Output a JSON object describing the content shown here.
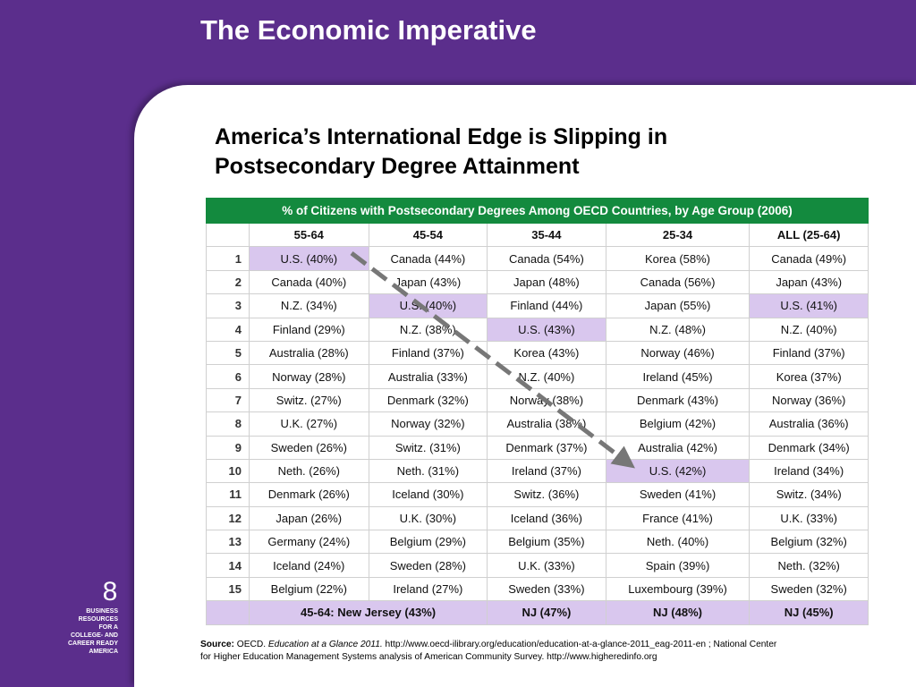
{
  "slide": {
    "title": "The Economic Imperative",
    "subtitle_line1": "America’s International Edge is Slipping in",
    "subtitle_line2": "Postsecondary Degree Attainment",
    "page_number": "8",
    "brand_lines": [
      "BUSINESS",
      "RESOURCES",
      "FOR A",
      "COLLEGE- AND",
      "CAREER READY",
      "AMERICA"
    ]
  },
  "table": {
    "caption": "% of Citizens with Postsecondary Degrees Among OECD Countries, by Age Group (2006)",
    "headers": [
      "",
      "55-64",
      "45-54",
      "35-44",
      "25-34",
      "ALL (25-64)"
    ],
    "rows": [
      {
        "rank": "1",
        "cells": [
          "U.S. (40%)",
          "Canada (44%)",
          "Canada (54%)",
          "Korea (58%)",
          "Canada (49%)"
        ],
        "highlight": [
          true,
          false,
          false,
          false,
          false
        ]
      },
      {
        "rank": "2",
        "cells": [
          "Canada (40%)",
          "Japan (43%)",
          "Japan (48%)",
          "Canada (56%)",
          "Japan (43%)"
        ],
        "highlight": [
          false,
          false,
          false,
          false,
          false
        ]
      },
      {
        "rank": "3",
        "cells": [
          "N.Z. (34%)",
          "U.S. (40%)",
          "Finland (44%)",
          "Japan (55%)",
          "U.S. (41%)"
        ],
        "highlight": [
          false,
          true,
          false,
          false,
          true
        ]
      },
      {
        "rank": "4",
        "cells": [
          "Finland (29%)",
          "N.Z. (38%)",
          "U.S. (43%)",
          "N.Z. (48%)",
          "N.Z. (40%)"
        ],
        "highlight": [
          false,
          false,
          true,
          false,
          false
        ]
      },
      {
        "rank": "5",
        "cells": [
          "Australia (28%)",
          "Finland (37%)",
          "Korea (43%)",
          "Norway (46%)",
          "Finland (37%)"
        ],
        "highlight": [
          false,
          false,
          false,
          false,
          false
        ]
      },
      {
        "rank": "6",
        "cells": [
          "Norway (28%)",
          "Australia (33%)",
          "N.Z. (40%)",
          "Ireland (45%)",
          "Korea (37%)"
        ],
        "highlight": [
          false,
          false,
          false,
          false,
          false
        ]
      },
      {
        "rank": "7",
        "cells": [
          "Switz. (27%)",
          "Denmark (32%)",
          "Norway (38%)",
          "Denmark (43%)",
          "Norway (36%)"
        ],
        "highlight": [
          false,
          false,
          false,
          false,
          false
        ]
      },
      {
        "rank": "8",
        "cells": [
          "U.K. (27%)",
          "Norway (32%)",
          "Australia (38%)",
          "Belgium (42%)",
          "Australia (36%)"
        ],
        "highlight": [
          false,
          false,
          false,
          false,
          false
        ]
      },
      {
        "rank": "9",
        "cells": [
          "Sweden (26%)",
          "Switz. (31%)",
          "Denmark (37%)",
          "Australia (42%)",
          "Denmark (34%)"
        ],
        "highlight": [
          false,
          false,
          false,
          false,
          false
        ]
      },
      {
        "rank": "10",
        "cells": [
          "Neth. (26%)",
          "Neth. (31%)",
          "Ireland (37%)",
          "U.S. (42%)",
          "Ireland (34%)"
        ],
        "highlight": [
          false,
          false,
          false,
          true,
          false
        ]
      },
      {
        "rank": "11",
        "cells": [
          "Denmark (26%)",
          "Iceland (30%)",
          "Switz. (36%)",
          "Sweden (41%)",
          "Switz. (34%)"
        ],
        "highlight": [
          false,
          false,
          false,
          false,
          false
        ]
      },
      {
        "rank": "12",
        "cells": [
          "Japan (26%)",
          "U.K. (30%)",
          "Iceland (36%)",
          "France (41%)",
          "U.K. (33%)"
        ],
        "highlight": [
          false,
          false,
          false,
          false,
          false
        ]
      },
      {
        "rank": "13",
        "cells": [
          "Germany (24%)",
          "Belgium (29%)",
          "Belgium (35%)",
          "Neth. (40%)",
          "Belgium (32%)"
        ],
        "highlight": [
          false,
          false,
          false,
          false,
          false
        ]
      },
      {
        "rank": "14",
        "cells": [
          "Iceland (24%)",
          "Sweden (28%)",
          "U.K. (33%)",
          "Spain (39%)",
          "Neth. (32%)"
        ],
        "highlight": [
          false,
          false,
          false,
          false,
          false
        ]
      },
      {
        "rank": "15",
        "cells": [
          "Belgium (22%)",
          "Ireland (27%)",
          "Sweden (33%)",
          "Luxembourg (39%)",
          "Sweden (32%)"
        ],
        "highlight": [
          false,
          false,
          false,
          false,
          false
        ]
      }
    ],
    "footer": [
      "45-64: New Jersey (43%)",
      "NJ (47%)",
      "NJ (48%)",
      "NJ (45%)"
    ]
  },
  "source": {
    "label": "Source:",
    "org": "OECD.",
    "publication": "Education at a Glance 2011.",
    "rest_line1": "http://www.oecd-ilibrary.org/education/education-at-a-glance-2011_eag-2011-en ; National Center",
    "rest_line2": "for Higher Education Management Systems analysis of American Community Survey.  http://www.higheredinfo.org"
  },
  "colors": {
    "background": "#5b2e8c",
    "caption_bar": "#138a3e",
    "highlight": "#d9c7ee",
    "arrow": "#777777"
  }
}
